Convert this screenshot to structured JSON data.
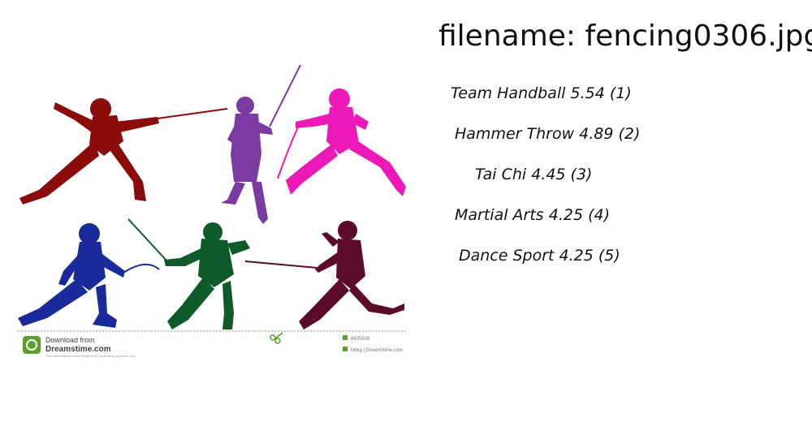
{
  "title": "filename: fencing0306.jpg",
  "predictions": [
    {
      "label": "Team Handball  5.54 (1)"
    },
    {
      "label": "Hammer Throw  4.89 (2)"
    },
    {
      "label": "Tai Chi  4.45 (3)"
    },
    {
      "label": "Martial Arts  4.25 (4)"
    },
    {
      "label": "Dance Sport  4.25 (5)"
    }
  ],
  "image": {
    "subject": "six fencer silhouettes",
    "watermark": {
      "line1": "Download from",
      "line2": "Dreamstime.com",
      "fineprint": "This watermarked comp image is for previewing purposes only.",
      "id_text": "8435508",
      "credit": "Milkg | Dreamstime.com"
    },
    "colors": {
      "red": "#8b0a0a",
      "purple": "#7a3aa0",
      "magenta": "#ec18b8",
      "blue": "#1a2a9a",
      "green": "#0e5a28",
      "maroon": "#5c0a2a",
      "watermark_green": "#5aa02a"
    }
  }
}
